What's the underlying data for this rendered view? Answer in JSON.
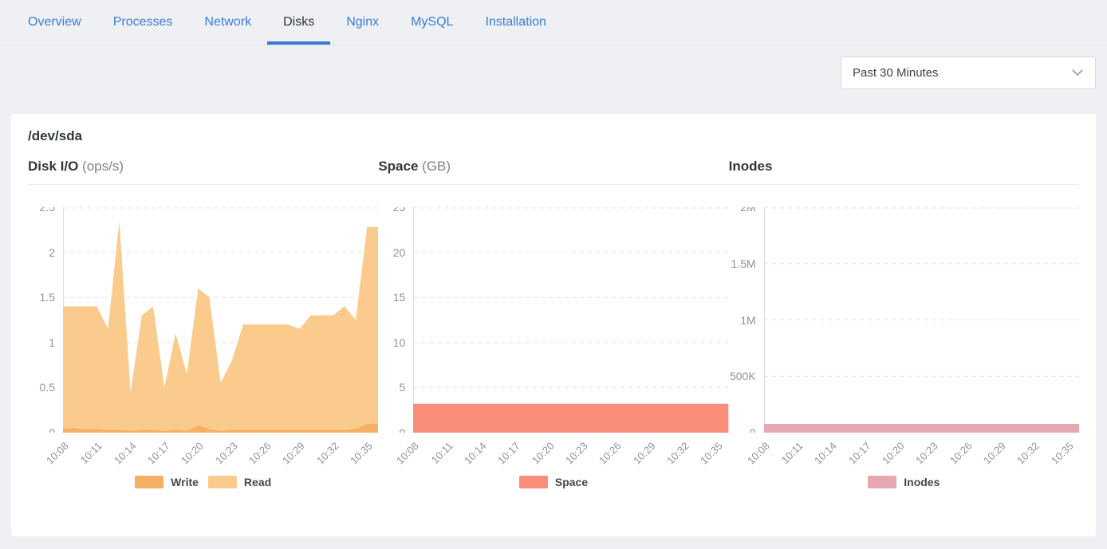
{
  "tab_bar": {
    "tabs": [
      {
        "label": "Overview",
        "active": false
      },
      {
        "label": "Processes",
        "active": false
      },
      {
        "label": "Network",
        "active": false
      },
      {
        "label": "Disks",
        "active": true
      },
      {
        "label": "Nginx",
        "active": false
      },
      {
        "label": "MySQL",
        "active": false
      },
      {
        "label": "Installation",
        "active": false
      }
    ]
  },
  "toolbar": {
    "time_range": "Past 30 Minutes"
  },
  "card": {
    "title": "/dev/sda"
  },
  "colors": {
    "accent_blue": "#3b7dd8",
    "tab_underline": "#3a79cf",
    "page_bg": "#eef0f3",
    "card_bg": "#ffffff",
    "write": "#f6b066",
    "read": "#fbcb8e",
    "space": "#fb8e7a",
    "inodes": "#e8a8b1",
    "grid": "#dfe2e6",
    "axis": "#d9dde1",
    "tick_text": "#8d939a",
    "legend_text": "#44484d"
  },
  "chart_data": [
    {
      "type": "area",
      "title": "Disk I/O",
      "unit": "(ops/s)",
      "ylim": [
        0,
        2.5
      ],
      "ytick_values": [
        0,
        0.5,
        1,
        1.5,
        2,
        2.5
      ],
      "ytick_labels": [
        "0",
        "0.5",
        "1",
        "1.5",
        "2",
        "2.5"
      ],
      "xtick_labels": [
        "10:08",
        "10:11",
        "10:14",
        "10:17",
        "10:20",
        "10:23",
        "10:26",
        "10:29",
        "10:32",
        "10:35"
      ],
      "xtick_every": 3,
      "grid": true,
      "legend_position": "bottom-center",
      "series": [
        {
          "name": "Write",
          "color": "#f6b066",
          "values": [
            0.04,
            0.05,
            0.04,
            0.04,
            0.03,
            0.03,
            0.02,
            0.03,
            0.03,
            0.02,
            0.03,
            0.02,
            0.08,
            0.04,
            0.02,
            0.03,
            0.03,
            0.03,
            0.03,
            0.03,
            0.03,
            0.03,
            0.03,
            0.03,
            0.03,
            0.03,
            0.04,
            0.1,
            0.1
          ]
        },
        {
          "name": "Read",
          "color": "#fbcb8e",
          "values": [
            1.4,
            1.4,
            1.4,
            1.4,
            1.15,
            2.35,
            0.45,
            1.3,
            1.4,
            0.5,
            1.1,
            0.65,
            1.6,
            1.5,
            0.55,
            0.8,
            1.2,
            1.2,
            1.2,
            1.2,
            1.2,
            1.15,
            1.3,
            1.3,
            1.3,
            1.4,
            1.25,
            2.28,
            2.28
          ]
        }
      ]
    },
    {
      "type": "area",
      "title": "Space",
      "unit": "(GB)",
      "ylim": [
        0,
        25
      ],
      "ytick_values": [
        0,
        5,
        10,
        15,
        20,
        25
      ],
      "ytick_labels": [
        "0",
        "5",
        "10",
        "15",
        "20",
        "25"
      ],
      "xtick_labels": [
        "10:08",
        "10:11",
        "10:14",
        "10:17",
        "10:20",
        "10:23",
        "10:26",
        "10:29",
        "10:32",
        "10:35"
      ],
      "xtick_every": 3,
      "grid": true,
      "legend_position": "bottom-center",
      "series": [
        {
          "name": "Space",
          "color": "#fb8e7a",
          "values": [
            3.2,
            3.2,
            3.2,
            3.2,
            3.2,
            3.2,
            3.2,
            3.2,
            3.2,
            3.2,
            3.2,
            3.2,
            3.2,
            3.2,
            3.2,
            3.2,
            3.2,
            3.2,
            3.2,
            3.2,
            3.2,
            3.2,
            3.2,
            3.2,
            3.2,
            3.2,
            3.2,
            3.2,
            3.2
          ]
        }
      ]
    },
    {
      "type": "area",
      "title": "Inodes",
      "unit": "",
      "ylim": [
        0,
        2000000
      ],
      "ytick_values": [
        0,
        500000,
        1000000,
        1500000,
        2000000
      ],
      "ytick_labels": [
        "0",
        "500K",
        "1M",
        "1.5M",
        "2M"
      ],
      "xtick_labels": [
        "10:08",
        "10:11",
        "10:14",
        "10:17",
        "10:20",
        "10:23",
        "10:26",
        "10:29",
        "10:32",
        "10:35"
      ],
      "xtick_every": 3,
      "grid": true,
      "legend_position": "bottom-center",
      "series": [
        {
          "name": "Inodes",
          "color": "#e8a8b1",
          "values": [
            78000,
            78000,
            78000,
            78000,
            78000,
            78000,
            78000,
            78000,
            78000,
            78000,
            78000,
            78000,
            78000,
            78000,
            78000,
            78000,
            78000,
            78000,
            78000,
            78000,
            78000,
            78000,
            78000,
            78000,
            78000,
            78000,
            78000,
            78000,
            78000
          ]
        }
      ]
    }
  ]
}
